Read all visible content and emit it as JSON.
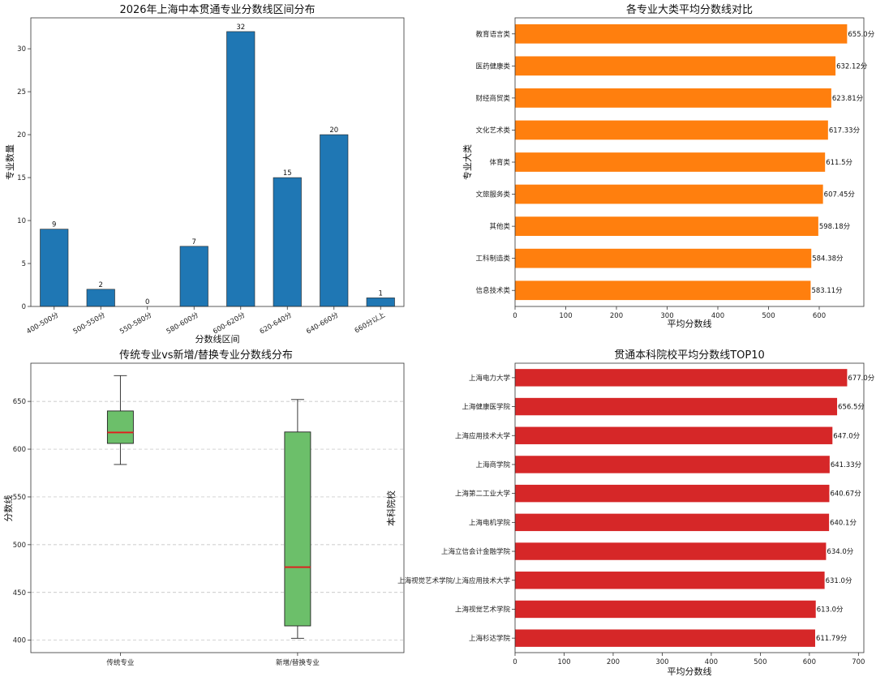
{
  "colors": {
    "bar_blue": "#1f77b4",
    "bar_orange": "#ff7f0e",
    "bar_red": "#d62728",
    "box_green": "#6cbf6a",
    "median_red": "#e41a1c"
  },
  "chart_data": [
    {
      "id": "c1",
      "type": "bar",
      "title": "2026年上海中本贯通专业分数线区间分布",
      "xlabel": "分数线区间",
      "ylabel": "专业数量",
      "categories": [
        "400-500分",
        "500-550分",
        "550-580分",
        "580-600分",
        "600-620分",
        "620-640分",
        "640-660分",
        "660分以上"
      ],
      "values": [
        9,
        2,
        0,
        7,
        32,
        15,
        20,
        1
      ],
      "ylim": [
        0,
        33.6
      ],
      "yticks": [
        0,
        5,
        10,
        15,
        20,
        25,
        30
      ],
      "grid": false
    },
    {
      "id": "c2",
      "type": "bar",
      "orientation": "horizontal",
      "title": "各专业大类平均分数线对比",
      "xlabel": "平均分数线",
      "ylabel": "专业大类",
      "categories": [
        "教育语言类",
        "医药健康类",
        "财经商贸类",
        "文化艺术类",
        "体育类",
        "文旅服务类",
        "其他类",
        "工科制造类",
        "信息技术类"
      ],
      "values": [
        655.0,
        632.12,
        623.81,
        617.33,
        611.5,
        607.45,
        598.18,
        584.38,
        583.11
      ],
      "value_labels": [
        "655.0分",
        "632.12分",
        "623.81分",
        "617.33分",
        "611.5分",
        "607.45分",
        "598.18分",
        "584.38分",
        "583.11分"
      ],
      "xlim": [
        0,
        688
      ],
      "xticks": [
        0,
        100,
        200,
        300,
        400,
        500,
        600
      ],
      "grid": false
    },
    {
      "id": "c3",
      "type": "box",
      "title": "传统专业vs新增/替换专业分数线分布",
      "xlabel": "",
      "ylabel": "分数线",
      "categories": [
        "传统专业",
        "新增/替换专业"
      ],
      "boxes": [
        {
          "whisker_low": 584,
          "q1": 606,
          "median": 617.5,
          "q3": 640,
          "whisker_high": 677
        },
        {
          "whisker_low": 402,
          "q1": 415,
          "median": 476.5,
          "q3": 618,
          "whisker_high": 652
        }
      ],
      "ylim": [
        387,
        690
      ],
      "yticks": [
        400,
        450,
        500,
        550,
        600,
        650
      ],
      "grid": true
    },
    {
      "id": "c4",
      "type": "bar",
      "orientation": "horizontal",
      "title": "贯通本科院校平均分数线TOP10",
      "xlabel": "平均分数线",
      "ylabel": "本科院校",
      "categories": [
        "上海电力大学",
        "上海健康医学院",
        "上海应用技术大学",
        "上海商学院",
        "上海第二工业大学",
        "上海电机学院",
        "上海立信会计金融学院",
        "上海视觉艺术学院/上海应用技术大学",
        "上海视觉艺术学院",
        "上海杉达学院"
      ],
      "values": [
        677.0,
        656.5,
        647.0,
        641.33,
        640.67,
        640.1,
        634.0,
        631.0,
        613.0,
        611.79
      ],
      "value_labels": [
        "677.0分",
        "656.5分",
        "647.0分",
        "641.33分",
        "640.67分",
        "640.1分",
        "634.0分",
        "631.0分",
        "613.0分",
        "611.79分"
      ],
      "xlim": [
        0,
        711
      ],
      "xticks": [
        0,
        100,
        200,
        300,
        400,
        500,
        600,
        700
      ],
      "grid": false
    }
  ]
}
